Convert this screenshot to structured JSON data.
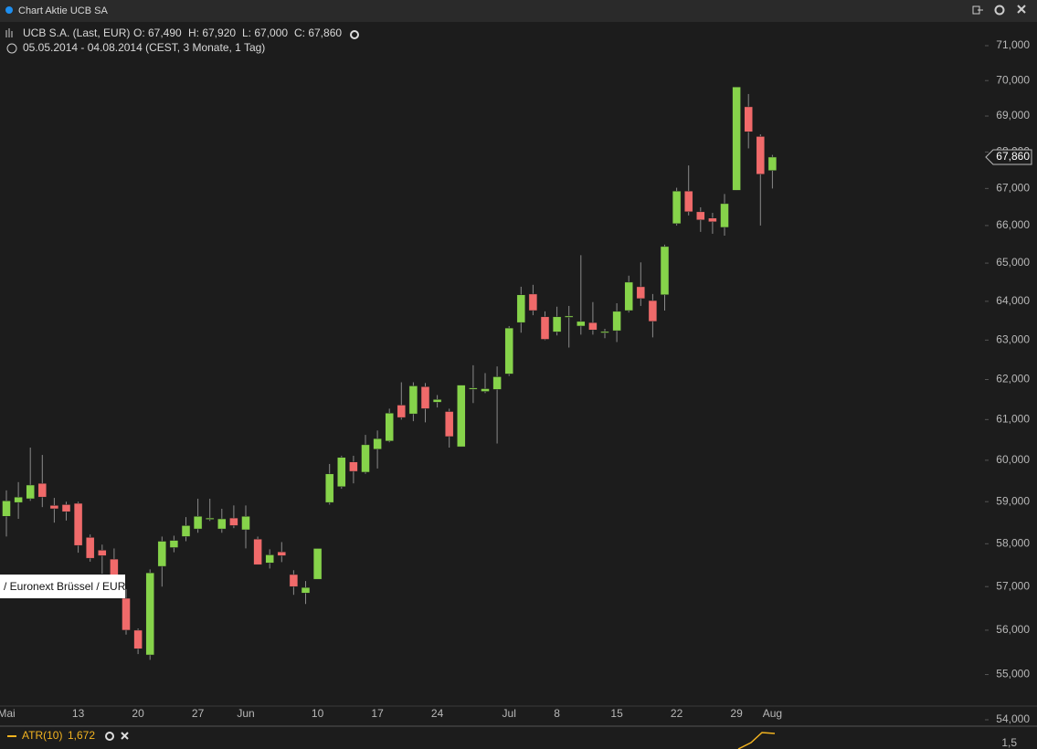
{
  "header": {
    "title": "Chart Aktie UCB SA",
    "instrument": "UCB S.A. (Last, EUR)",
    "ohlc": [
      "O: 67,490",
      "H: 67,920",
      "L: 67,000",
      "C: 67,860"
    ],
    "period": "05.05.2014 - 04.08.2014 (CEST, 3 Monate, 1 Tag)",
    "tooltip": "/ Euronext Brüssel / EUR",
    "indicator": "ATR(10)",
    "indicator_value": "1,672",
    "indicator_axis_label": "1,5"
  },
  "chart_data": {
    "type": "candlestick",
    "log": true,
    "up_color": "#86d34a",
    "down_color": "#f06a6a",
    "categories": [
      "Mai",
      null,
      null,
      null,
      null,
      null,
      "13",
      null,
      null,
      null,
      null,
      "20",
      null,
      null,
      null,
      null,
      "27",
      null,
      null,
      null,
      "Jun",
      null,
      null,
      null,
      null,
      null,
      "10",
      null,
      null,
      null,
      null,
      "17",
      null,
      null,
      null,
      null,
      "24",
      null,
      null,
      null,
      null,
      null,
      "Jul",
      null,
      null,
      null,
      "8",
      null,
      null,
      null,
      null,
      "15",
      null,
      null,
      null,
      null,
      "22",
      null,
      null,
      null,
      null,
      "29",
      null,
      null,
      "Aug"
    ],
    "open": [
      58650,
      58980,
      59070,
      59440,
      58910,
      58930,
      58960,
      58150,
      57850,
      57640,
      56730,
      56000,
      55440,
      57470,
      57910,
      58170,
      58350,
      58590,
      58350,
      58610,
      58330,
      58110,
      57550,
      57810,
      57280,
      56850,
      57170,
      58980,
      59360,
      59960,
      59710,
      60270,
      60470,
      61360,
      61140,
      61820,
      61430,
      61200,
      60330,
      61770,
      61700,
      61750,
      62140,
      63450,
      64190,
      63600,
      63210,
      63600,
      63360,
      63450,
      63190,
      63240,
      63760,
      64380,
      64020,
      64170,
      66050,
      66930,
      66370,
      66200,
      65950,
      66950,
      69260,
      68430,
      67490
    ],
    "high": [
      59270,
      59470,
      60310,
      60130,
      59090,
      59000,
      59000,
      58220,
      57980,
      57890,
      56940,
      56040,
      57400,
      58170,
      58190,
      58630,
      59070,
      59070,
      58830,
      58910,
      58910,
      58170,
      57870,
      58040,
      57380,
      57130,
      57890,
      59910,
      60110,
      60110,
      60620,
      60730,
      61270,
      61930,
      61930,
      61910,
      61610,
      61270,
      61860,
      62360,
      62160,
      62330,
      63360,
      64380,
      64430,
      63740,
      63860,
      63880,
      65210,
      63980,
      63290,
      63950,
      64670,
      65020,
      64190,
      65490,
      67020,
      67630,
      66490,
      66340,
      66850,
      69820,
      69620,
      68490,
      67920
    ],
    "low": [
      58170,
      58590,
      59020,
      58870,
      58500,
      58550,
      57790,
      57580,
      57300,
      56830,
      55900,
      55460,
      55330,
      57000,
      57800,
      58060,
      58260,
      58540,
      58260,
      58370,
      57890,
      57510,
      57420,
      57570,
      56810,
      56600,
      57170,
      58930,
      59310,
      59440,
      59670,
      59800,
      60440,
      61000,
      60960,
      60930,
      61300,
      60310,
      60330,
      61410,
      61660,
      60410,
      62090,
      63190,
      63640,
      63000,
      63120,
      62810,
      63140,
      63140,
      63050,
      62950,
      63710,
      63880,
      63070,
      63760,
      66000,
      66270,
      65830,
      65780,
      65730,
      66950,
      68100,
      66000,
      67000
    ],
    "close": [
      59020,
      59110,
      59400,
      59110,
      58830,
      58760,
      57960,
      57660,
      57720,
      57190,
      56000,
      55580,
      57320,
      58060,
      58080,
      58430,
      58650,
      58610,
      58590,
      58430,
      58650,
      57510,
      57740,
      57720,
      57000,
      56980,
      57890,
      59670,
      60070,
      59730,
      60380,
      60530,
      61160,
      61050,
      61840,
      61270,
      61500,
      60580,
      61860,
      61790,
      61770,
      62070,
      63310,
      64170,
      63760,
      63020,
      63600,
      63620,
      63480,
      63260,
      63220,
      63740,
      64500,
      64070,
      63480,
      65440,
      66930,
      66370,
      66150,
      66100,
      66590,
      69820,
      68560,
      67390,
      67860
    ],
    "ylim": [
      54000,
      71000
    ],
    "yticks": [
      {
        "value": 54000,
        "label": "54,000"
      },
      {
        "value": 55000,
        "label": "55,000"
      },
      {
        "value": 56000,
        "label": "56,000"
      },
      {
        "value": 57000,
        "label": "57,000"
      },
      {
        "value": 58000,
        "label": "58,000"
      },
      {
        "value": 59000,
        "label": "59,000"
      },
      {
        "value": 60000,
        "label": "60,000"
      },
      {
        "value": 61000,
        "label": "61,000"
      },
      {
        "value": 62000,
        "label": "62,000"
      },
      {
        "value": 63000,
        "label": "63,000"
      },
      {
        "value": 64000,
        "label": "64,000"
      },
      {
        "value": 65000,
        "label": "65,000"
      },
      {
        "value": 66000,
        "label": "66,000"
      },
      {
        "value": 67000,
        "label": "67,000"
      },
      {
        "value": 68000,
        "label": "68,000"
      },
      {
        "value": 69000,
        "label": "69,000"
      },
      {
        "value": 70000,
        "label": "70,000"
      },
      {
        "value": 71000,
        "label": "71,000"
      }
    ],
    "last_price": {
      "value": 67860,
      "label": "67,860"
    }
  }
}
